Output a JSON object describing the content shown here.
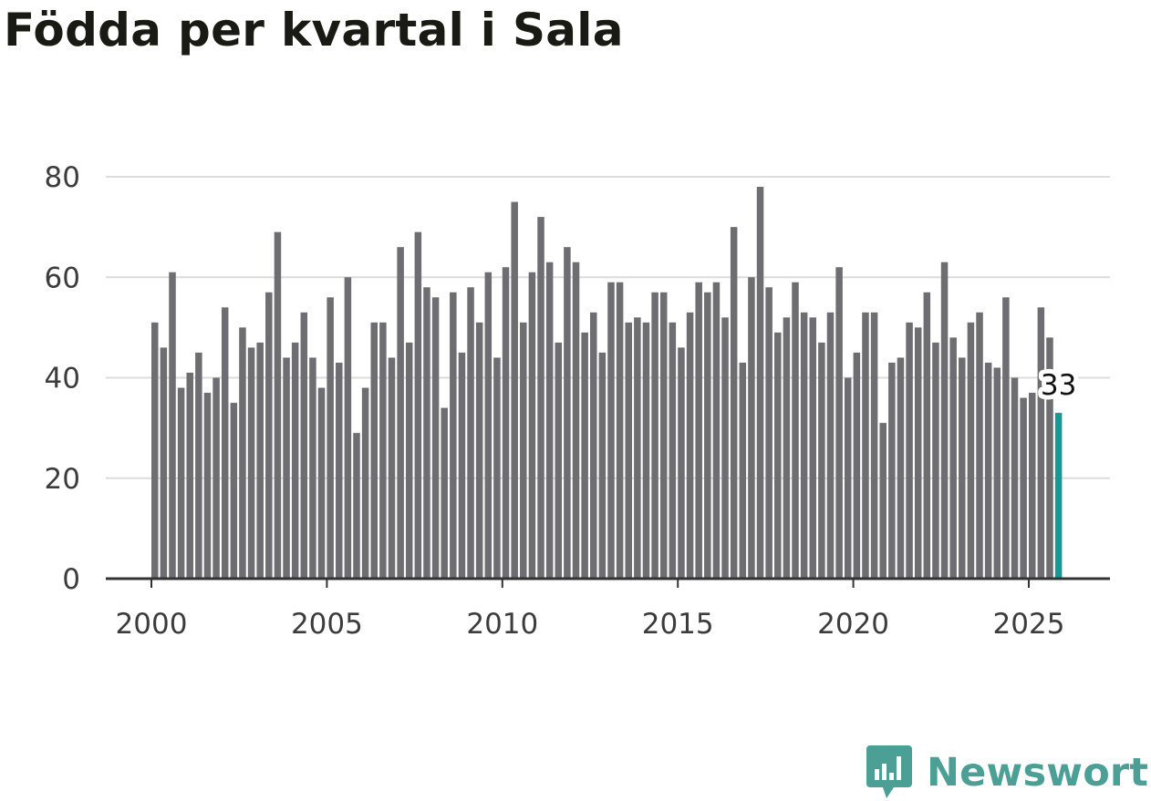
{
  "chart_data": {
    "type": "bar",
    "title": "Födda per kvartal i Sala",
    "xlabel": "",
    "ylabel": "",
    "ylim": [
      0,
      80
    ],
    "y_ticks": [
      0,
      20,
      40,
      60,
      80
    ],
    "x_ticks": [
      "2000",
      "2005",
      "2010",
      "2015",
      "2020",
      "2025"
    ],
    "start_year": 2000,
    "start_quarter": 1,
    "values": [
      51,
      46,
      61,
      38,
      41,
      45,
      37,
      40,
      54,
      35,
      50,
      46,
      47,
      57,
      69,
      44,
      47,
      53,
      44,
      38,
      56,
      43,
      60,
      29,
      38,
      51,
      51,
      44,
      66,
      47,
      69,
      58,
      56,
      34,
      57,
      45,
      58,
      51,
      61,
      44,
      62,
      75,
      51,
      61,
      72,
      63,
      47,
      66,
      63,
      49,
      53,
      45,
      59,
      59,
      51,
      52,
      51,
      57,
      57,
      51,
      46,
      53,
      59,
      57,
      59,
      52,
      70,
      43,
      60,
      78,
      58,
      49,
      52,
      59,
      53,
      52,
      47,
      53,
      62,
      40,
      45,
      53,
      53,
      31,
      43,
      44,
      51,
      50,
      57,
      47,
      63,
      48,
      44,
      51,
      53,
      43,
      42,
      56,
      40,
      36,
      37,
      54,
      48,
      33
    ],
    "highlight_label": "33",
    "colors": {
      "bar": "#6e6d72",
      "highlight": "#159a91",
      "grid": "#dcdcdc"
    }
  },
  "logo": {
    "text": "Newsworthy",
    "icon": "newsworthy-chat-chart-icon",
    "color": "#4c9f95"
  }
}
